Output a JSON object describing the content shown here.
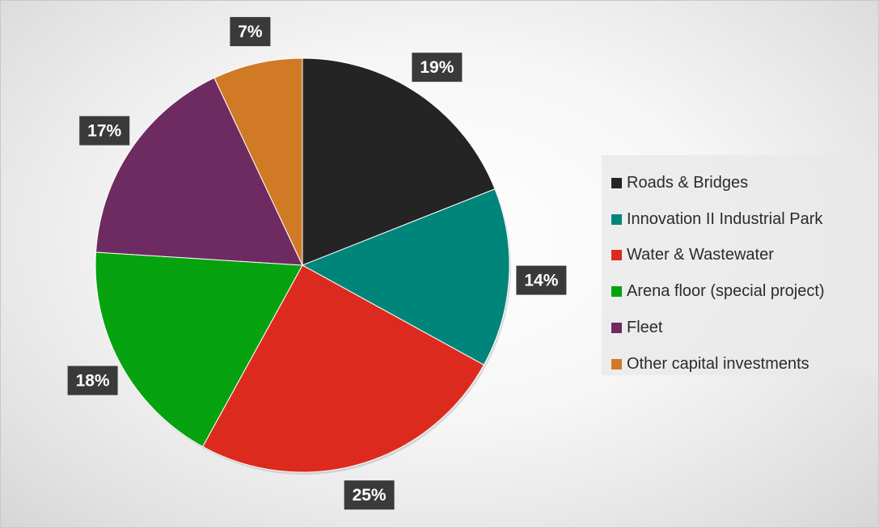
{
  "chart_data": {
    "type": "pie",
    "title": "",
    "legend_position": "right",
    "data_labels": "percent",
    "slices": [
      {
        "label": "Roads & Bridges",
        "value": 19,
        "display": "19%",
        "color": "#242424"
      },
      {
        "label": "Innovation II Industrial Park",
        "value": 14,
        "display": "14%",
        "color": "#00857a"
      },
      {
        "label": "Water & Wastewater",
        "value": 25,
        "display": "25%",
        "color": "#dc2b1e"
      },
      {
        "label": "Arena floor (special project)",
        "value": 18,
        "display": "18%",
        "color": "#06a20f"
      },
      {
        "label": "Fleet",
        "value": 17,
        "display": "17%",
        "color": "#6e2b62"
      },
      {
        "label": "Other capital investments",
        "value": 7,
        "display": "7%",
        "color": "#d07a26"
      }
    ]
  }
}
